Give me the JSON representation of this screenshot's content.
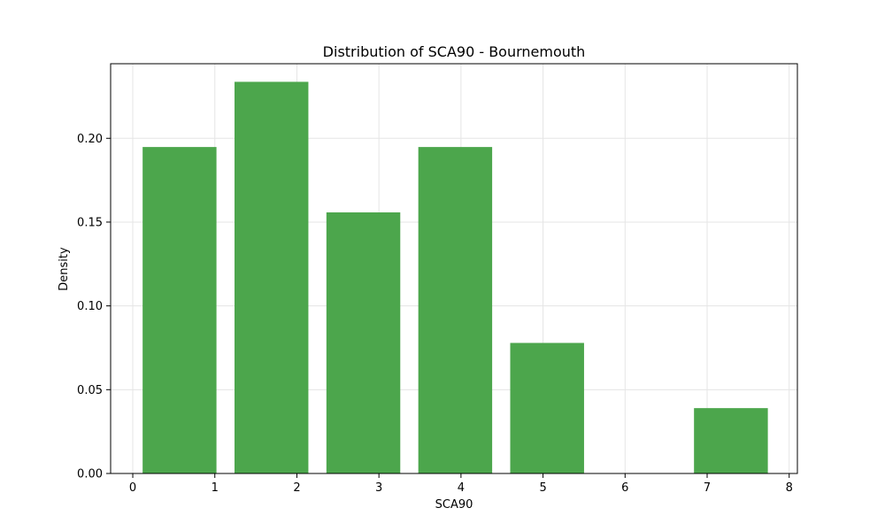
{
  "chart_data": {
    "type": "bar",
    "title": "Distribution of SCA90 - Bournemouth",
    "xlabel": "SCA90",
    "ylabel": "Density",
    "xlim": [
      -0.27,
      8.1
    ],
    "ylim": [
      0,
      0.2445
    ],
    "xticks": [
      0,
      1,
      2,
      3,
      4,
      5,
      6,
      7,
      8
    ],
    "xtick_labels": [
      "0",
      "1",
      "2",
      "3",
      "4",
      "5",
      "6",
      "7",
      "8"
    ],
    "yticks": [
      0.0,
      0.05,
      0.1,
      0.15,
      0.2
    ],
    "ytick_labels": [
      "0.00",
      "0.05",
      "0.10",
      "0.15",
      "0.20"
    ],
    "bins": [
      {
        "start": 0.12,
        "end": 1.02,
        "value": 0.1948
      },
      {
        "start": 1.24,
        "end": 2.14,
        "value": 0.2337
      },
      {
        "start": 2.36,
        "end": 3.26,
        "value": 0.1558
      },
      {
        "start": 3.48,
        "end": 4.38,
        "value": 0.1948
      },
      {
        "start": 4.6,
        "end": 5.5,
        "value": 0.0779
      },
      {
        "start": 6.84,
        "end": 7.74,
        "value": 0.039
      }
    ],
    "grid": true,
    "color": "#4ca64c",
    "grid_color": "#e5e5e5"
  }
}
